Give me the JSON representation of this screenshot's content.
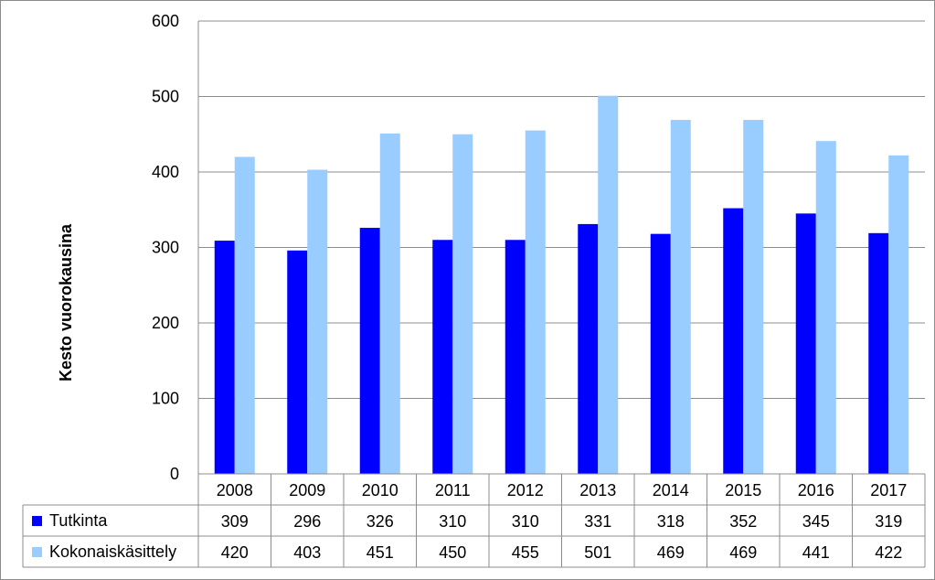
{
  "chart_data": {
    "type": "bar",
    "title": "",
    "xlabel": "",
    "ylabel": "Kesto vuorokausina",
    "categories": [
      "2008",
      "2009",
      "2010",
      "2011",
      "2012",
      "2013",
      "2014",
      "2015",
      "2016",
      "2017"
    ],
    "series": [
      {
        "name": "Tutkinta",
        "color": "#0000ff",
        "values": [
          309,
          296,
          326,
          310,
          310,
          331,
          318,
          352,
          345,
          319
        ]
      },
      {
        "name": "Kokonaiskäsittely",
        "color": "#99ccff",
        "values": [
          420,
          403,
          451,
          450,
          455,
          501,
          469,
          469,
          441,
          422
        ]
      }
    ],
    "y_ticks": [
      "0",
      "100",
      "200",
      "300",
      "400",
      "500",
      "600"
    ],
    "ylim": [
      0,
      600
    ],
    "grid": true,
    "legend": "data-table"
  }
}
